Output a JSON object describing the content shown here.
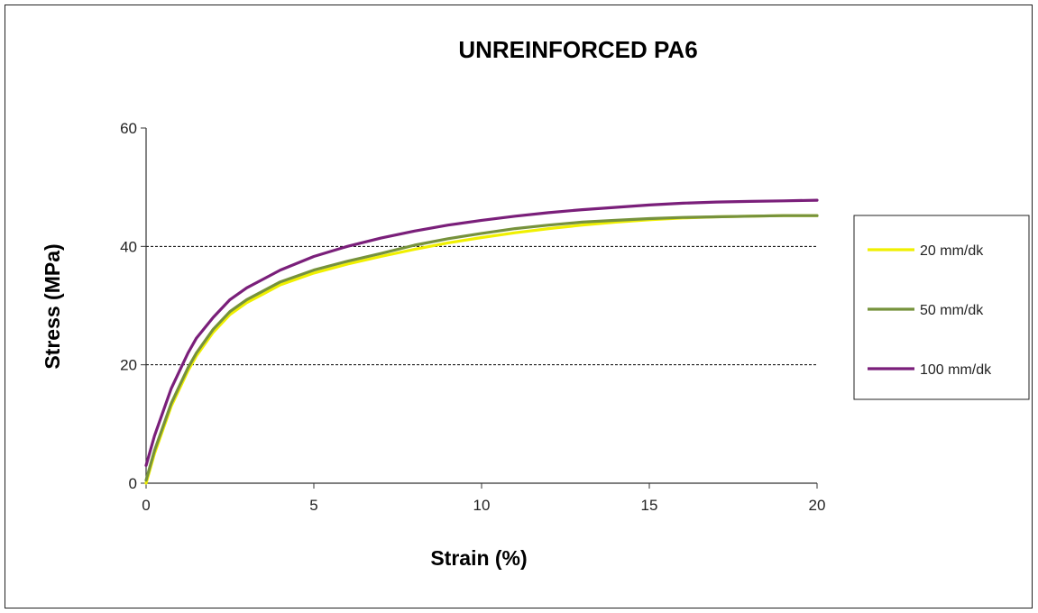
{
  "chart_data": {
    "type": "line",
    "title": "UNREINFORCED PA6",
    "xlabel": "Strain (%)",
    "ylabel": "Stress (MPa)",
    "xlim": [
      0,
      20
    ],
    "ylim": [
      0,
      60
    ],
    "xticks": [
      0,
      5,
      10,
      15,
      20
    ],
    "yticks": [
      0,
      20,
      40,
      60
    ],
    "grid": "horizontal dashed at 20 and 40",
    "legend_position": "right",
    "series": [
      {
        "name": "20 mm/dk",
        "color": "#f0f000",
        "x": [
          0,
          0.25,
          0.5,
          0.75,
          1,
          1.25,
          1.5,
          2,
          2.5,
          3,
          3.5,
          4,
          5,
          6,
          7,
          8,
          9,
          10,
          11,
          12,
          13,
          14,
          15,
          16,
          17,
          18,
          19,
          20
        ],
        "y": [
          0,
          5,
          9,
          13,
          16,
          19,
          21.5,
          25.5,
          28.5,
          30.5,
          32,
          33.5,
          35.5,
          37,
          38.3,
          39.5,
          40.6,
          41.5,
          42.3,
          43,
          43.6,
          44.1,
          44.5,
          44.8,
          45,
          45.1,
          45.2,
          45.2
        ]
      },
      {
        "name": "50 mm/dk",
        "color": "#76923c",
        "x": [
          0,
          0.25,
          0.5,
          0.75,
          1,
          1.25,
          1.5,
          2,
          2.5,
          3,
          3.5,
          4,
          5,
          6,
          7,
          8,
          9,
          10,
          11,
          12,
          13,
          14,
          15,
          16,
          17,
          18,
          19,
          20
        ],
        "y": [
          0.5,
          5.5,
          9.5,
          13.5,
          16.5,
          19.5,
          22,
          26,
          29,
          31,
          32.5,
          34,
          36,
          37.5,
          38.8,
          40.2,
          41.3,
          42.2,
          43,
          43.6,
          44.1,
          44.4,
          44.7,
          44.9,
          45,
          45.1,
          45.2,
          45.2
        ]
      },
      {
        "name": "100 mm/dk",
        "color": "#7a1f7a",
        "x": [
          0,
          0.25,
          0.5,
          0.75,
          1,
          1.25,
          1.5,
          2,
          2.5,
          3,
          3.5,
          4,
          5,
          6,
          7,
          8,
          9,
          10,
          11,
          12,
          13,
          14,
          15,
          16,
          17,
          18,
          19,
          20
        ],
        "y": [
          3,
          8,
          12,
          16,
          19,
          22,
          24.5,
          28,
          31,
          33,
          34.5,
          36,
          38.3,
          40,
          41.4,
          42.6,
          43.6,
          44.4,
          45.1,
          45.7,
          46.2,
          46.6,
          47,
          47.3,
          47.5,
          47.6,
          47.7,
          47.8
        ]
      }
    ]
  }
}
